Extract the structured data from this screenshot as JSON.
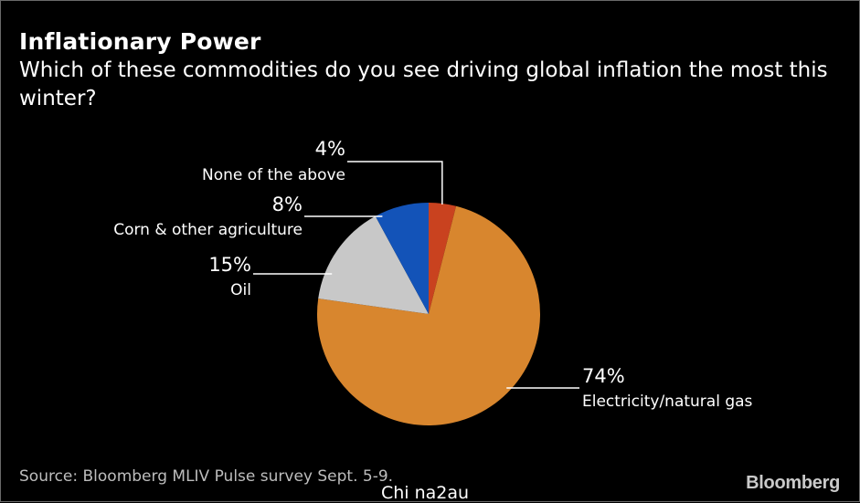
{
  "header": {
    "title": "Inflationary Power",
    "subtitle": "Which of these commodities do you see driving global inflation the most this winter?"
  },
  "footer": {
    "source": "Source: Bloomberg MLIV Pulse survey Sept. 5-9.",
    "brand": "Bloomberg",
    "watermark": "Chi na2au"
  },
  "colors": {
    "background": "#000000",
    "text": "#ffffff",
    "leader_line": "#ffffff"
  },
  "chart_data": {
    "type": "pie",
    "title": "Inflationary Power",
    "subtitle": "Which of these commodities do you see driving global inflation the most this winter?",
    "slices": [
      {
        "label": "None of the above",
        "value": 4,
        "display": "4%",
        "color": "#c9421f"
      },
      {
        "label": "Electricity/natural gas",
        "value": 74,
        "display": "74%",
        "color": "#d8862e"
      },
      {
        "label": "Oil",
        "value": 15,
        "display": "15%",
        "color": "#c8c8c8"
      },
      {
        "label": "Corn & other agriculture",
        "value": 8,
        "display": "8%",
        "color": "#1353b8"
      }
    ],
    "start_angle_deg": 0,
    "direction": "clockwise",
    "source": "Source: Bloomberg MLIV Pulse survey Sept. 5-9."
  }
}
